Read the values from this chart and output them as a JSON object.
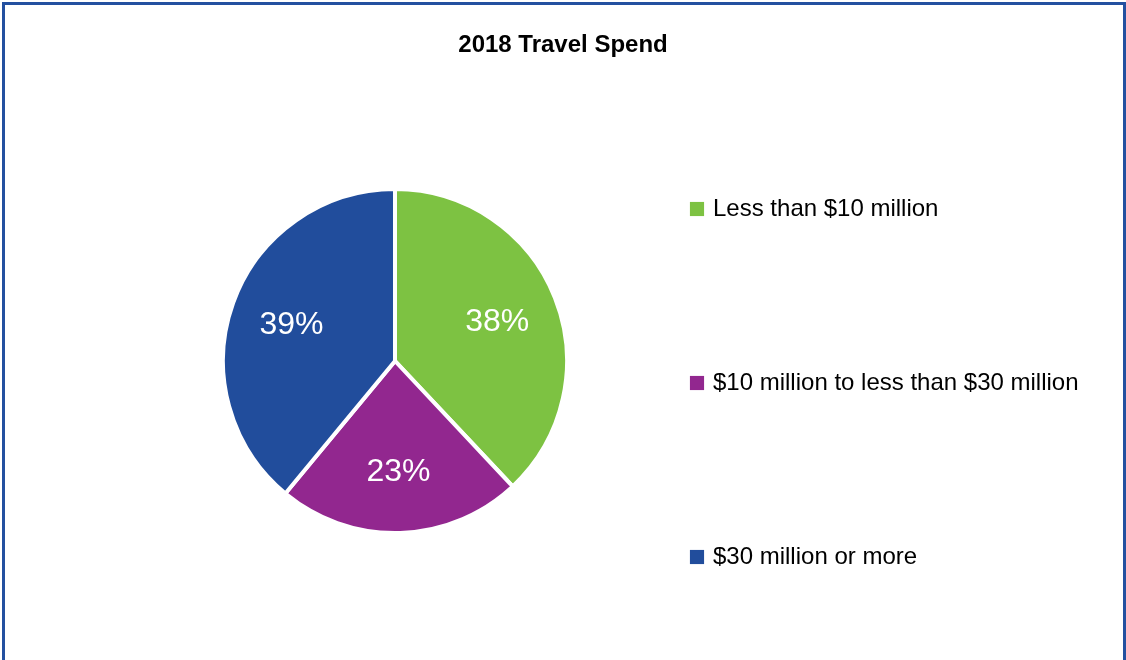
{
  "chart_data": {
    "type": "pie",
    "title": "2018 Travel Spend",
    "categories": [
      "Less than $10 million",
      "$10 million to less than $30 million",
      "$30 million or more"
    ],
    "values": [
      38,
      23,
      39
    ],
    "colors": [
      "#7dc242",
      "#92278f",
      "#214d9c"
    ],
    "value_labels": [
      "38%",
      "23%",
      "39%"
    ],
    "legend": "right"
  }
}
